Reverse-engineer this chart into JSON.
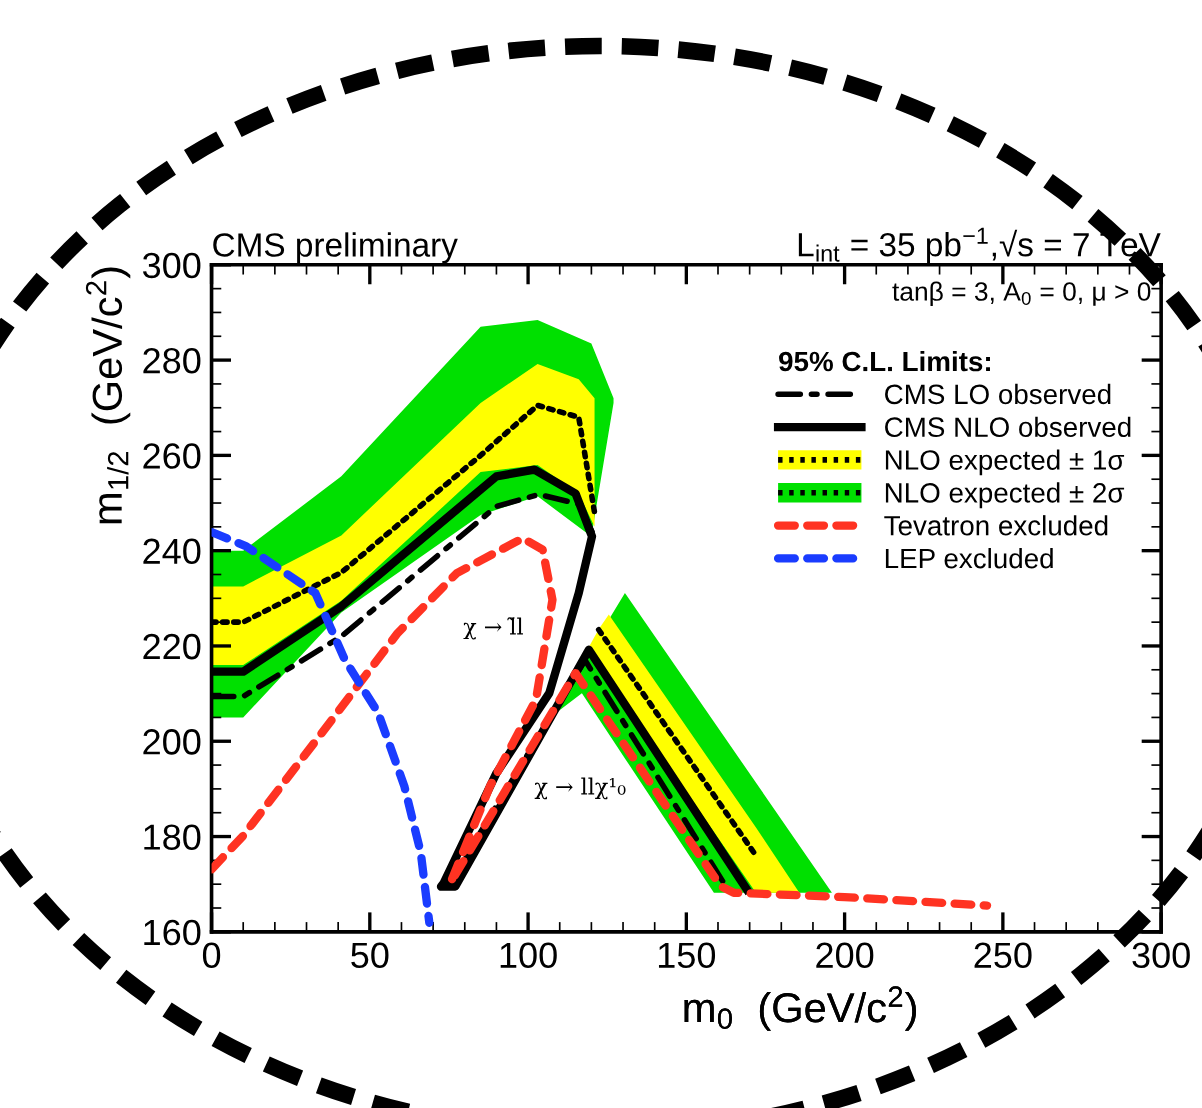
{
  "chart_data": {
    "type": "line",
    "title": "CMS preliminary",
    "subtitle": "L$_{int}$ = 35 pb$^{−1}$,√s = 7 TeV",
    "xlabel": "m$_{0}$  (GeV/c$^{2}$)",
    "ylabel": "m$_{1/2}$  (GeV/c$^{2}$)",
    "legend_title": "95% C.L. Limits:",
    "xlim": [
      0,
      300
    ],
    "ylim": [
      160,
      300
    ],
    "xticks": [
      0,
      50,
      100,
      150,
      200,
      250,
      300
    ],
    "yticks": [
      160,
      180,
      200,
      220,
      240,
      260,
      280,
      300
    ],
    "legend": "top right",
    "marker": "none",
    "series": [
      {
        "name": "CMS LO observed",
        "color": "#000000",
        "line_style": "dashdot",
        "x": [
          0,
          10,
          41,
          90,
          103.5,
          116,
          120.2,
          null,
          75,
          118,
          163
        ],
        "values": [
          209.4,
          209.4,
          222,
          249.3,
          251.8,
          249.8,
          244,
          null,
          170,
          217,
          169
        ]
      },
      {
        "name": "CMS NLO observed",
        "color": "#000000",
        "line_style": "solid",
        "x": [
          0,
          10,
          41,
          90,
          102,
          115,
          120.2,
          116,
          106.7,
          90,
          73.3,
          72.5,
          77,
          119.2,
          169.1
        ],
        "values": [
          214.6,
          214.6,
          228.3,
          255.6,
          257,
          252,
          243,
          231.1,
          210.1,
          193.3,
          170.2,
          169.5,
          169.5,
          219.2,
          168.9
        ]
      },
      {
        "name": "NLO expected ± 1σ",
        "color": "#ffff00",
        "x": [
          0,
          10,
          41,
          85,
          103,
          116,
          121,
          null,
          119,
          122.3,
          125.5,
          172,
          185.7
        ],
        "values": [
          null,
          null,
          null,
          null,
          null,
          null,
          null,
          null,
          null,
          null,
          null,
          null,
          null
        ],
        "lower": [
          216,
          216,
          229.5,
          256.5,
          258,
          252,
          245,
          null,
          219.2,
          216.2,
          212.9,
          168.2,
          168.2
        ],
        "upper": [
          232.5,
          232.5,
          243.2,
          271,
          279.2,
          276,
          272,
          null,
          219.5,
          223.5,
          226.6,
          181.9,
          168.2
        ]
      },
      {
        "name": "NLO expected ± 2σ",
        "color": "#00e000",
        "x": [
          0,
          10,
          41,
          85,
          103,
          120,
          127,
          null,
          108.7,
          117,
          130.6,
          158.7,
          196
        ],
        "values": [
          null,
          null,
          null,
          null,
          null,
          null,
          null,
          null,
          null,
          null,
          null,
          null,
          null
        ],
        "lower": [
          205,
          205,
          227,
          247.5,
          251.4,
          243,
          271,
          null,
          205.9,
          210.1,
          196.4,
          168.2,
          168.2
        ],
        "upper": [
          240,
          240,
          255.6,
          287,
          288.4,
          283.5,
          272,
          null,
          205.9,
          216.2,
          231.1,
          204.1,
          168.2
        ]
      },
      {
        "color": "#000000",
        "line_style": "dotted",
        "x": [
          0,
          10,
          41,
          85,
          103,
          116,
          121,
          null,
          122.3,
          172
        ],
        "values": [
          225,
          225,
          235.4,
          260,
          270.5,
          268,
          248,
          null,
          223.4,
          176
        ]
      },
      {
        "name": "Tevatron excluded",
        "color": "#ff3322",
        "line_style": "dashed",
        "x": [
          0,
          9.9,
          38,
          58.8,
          77.5,
          98.3,
          104.6,
          107.7,
          102.5,
          88,
          75.5,
          115,
          160.8,
          165,
          200,
          245
        ],
        "values": [
          173.1,
          180.1,
          204.5,
          222.7,
          235.3,
          242.6,
          240.2,
          229.7,
          208.7,
          190.6,
          170.3,
          214.3,
          169.6,
          168.2,
          167.3,
          165.5
        ]
      },
      {
        "name": "LEP excluded",
        "color": "#1a3cff",
        "line_style": "dashed",
        "x": [
          0,
          11,
          23.4,
          32.8,
          42.1,
          52.6,
          60.9,
          66.1,
          68.8
        ],
        "values": [
          243.9,
          240.9,
          235.3,
          231.1,
          217.1,
          206,
          190.6,
          176.6,
          161.9
        ]
      }
    ],
    "annotations": [
      "tanβ = 3, A$_{0}$ = 0, μ > 0",
      "χ → l̃l",
      "χ → llχ¹₀"
    ]
  }
}
